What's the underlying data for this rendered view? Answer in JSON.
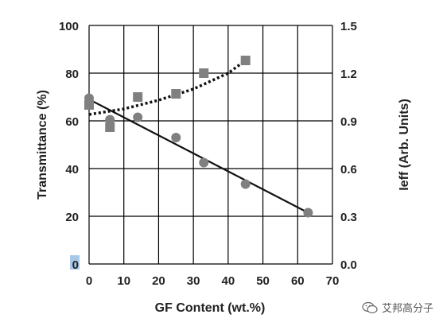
{
  "chart_data": {
    "type": "scatter",
    "xlabel": "GF Content (wt.%)",
    "ylabel": "Transmittance (%)",
    "y2label": "Ieff (Arb. Units)",
    "xlim": [
      0,
      70
    ],
    "ylim": [
      0,
      100
    ],
    "y2lim": [
      0.0,
      1.5
    ],
    "x_ticks": [
      "0",
      "10",
      "20",
      "30",
      "40",
      "50",
      "60",
      "70"
    ],
    "y_ticks": [
      "0",
      "20",
      "40",
      "60",
      "80",
      "100"
    ],
    "y2_ticks": [
      "0.0",
      "0.3",
      "0.6",
      "0.9",
      "1.2",
      "1.5"
    ],
    "grid": true,
    "series": [
      {
        "marker": "circle",
        "axis": "left",
        "color": "#808080",
        "points": [
          [
            0,
            69.5
          ],
          [
            6,
            60.5
          ],
          [
            14,
            61.5
          ],
          [
            25,
            53
          ],
          [
            33,
            42.5
          ],
          [
            45,
            33.5
          ],
          [
            63,
            21.5
          ]
        ]
      },
      {
        "marker": "square",
        "axis": "right",
        "color": "#808080",
        "points": [
          [
            0,
            1.0
          ],
          [
            6,
            0.86
          ],
          [
            14,
            1.05
          ],
          [
            25,
            1.07
          ],
          [
            33,
            1.2
          ],
          [
            45,
            1.28
          ]
        ]
      },
      {
        "type": "line",
        "style": "solid",
        "axis": "left",
        "color": "#111111",
        "points": [
          [
            0,
            69
          ],
          [
            63,
            21.5
          ]
        ]
      },
      {
        "type": "line",
        "style": "dotted",
        "axis": "right",
        "color": "#111111",
        "points": [
          [
            0,
            0.94
          ],
          [
            10,
            0.975
          ],
          [
            20,
            1.03
          ],
          [
            30,
            1.1
          ],
          [
            40,
            1.2
          ],
          [
            45,
            1.28
          ]
        ]
      }
    ]
  },
  "watermark": {
    "icon": "wechat-icon",
    "text": "艾邦高分子"
  }
}
